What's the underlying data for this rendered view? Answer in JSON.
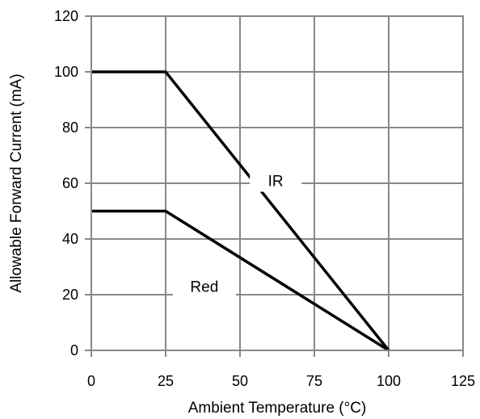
{
  "chart_data": {
    "type": "line",
    "xlabel": "Ambient Temperature (°C)",
    "ylabel": "Allowable Forward Current (mA)",
    "xlim": [
      0,
      125
    ],
    "ylim": [
      0,
      120
    ],
    "x_ticks": [
      "0",
      "25",
      "50",
      "75",
      "100",
      "125"
    ],
    "y_ticks": [
      "0",
      "20",
      "40",
      "60",
      "80",
      "100",
      "120"
    ],
    "grid": true,
    "series": [
      {
        "name": "IR",
        "x": [
          0,
          25,
          100
        ],
        "y": [
          100,
          100,
          0
        ],
        "color": "#000000",
        "label_at": [
          62,
          61
        ]
      },
      {
        "name": "Red",
        "x": [
          0,
          25,
          100
        ],
        "y": [
          50,
          50,
          0
        ],
        "color": "#000000",
        "label_at": [
          38,
          23
        ]
      }
    ]
  }
}
